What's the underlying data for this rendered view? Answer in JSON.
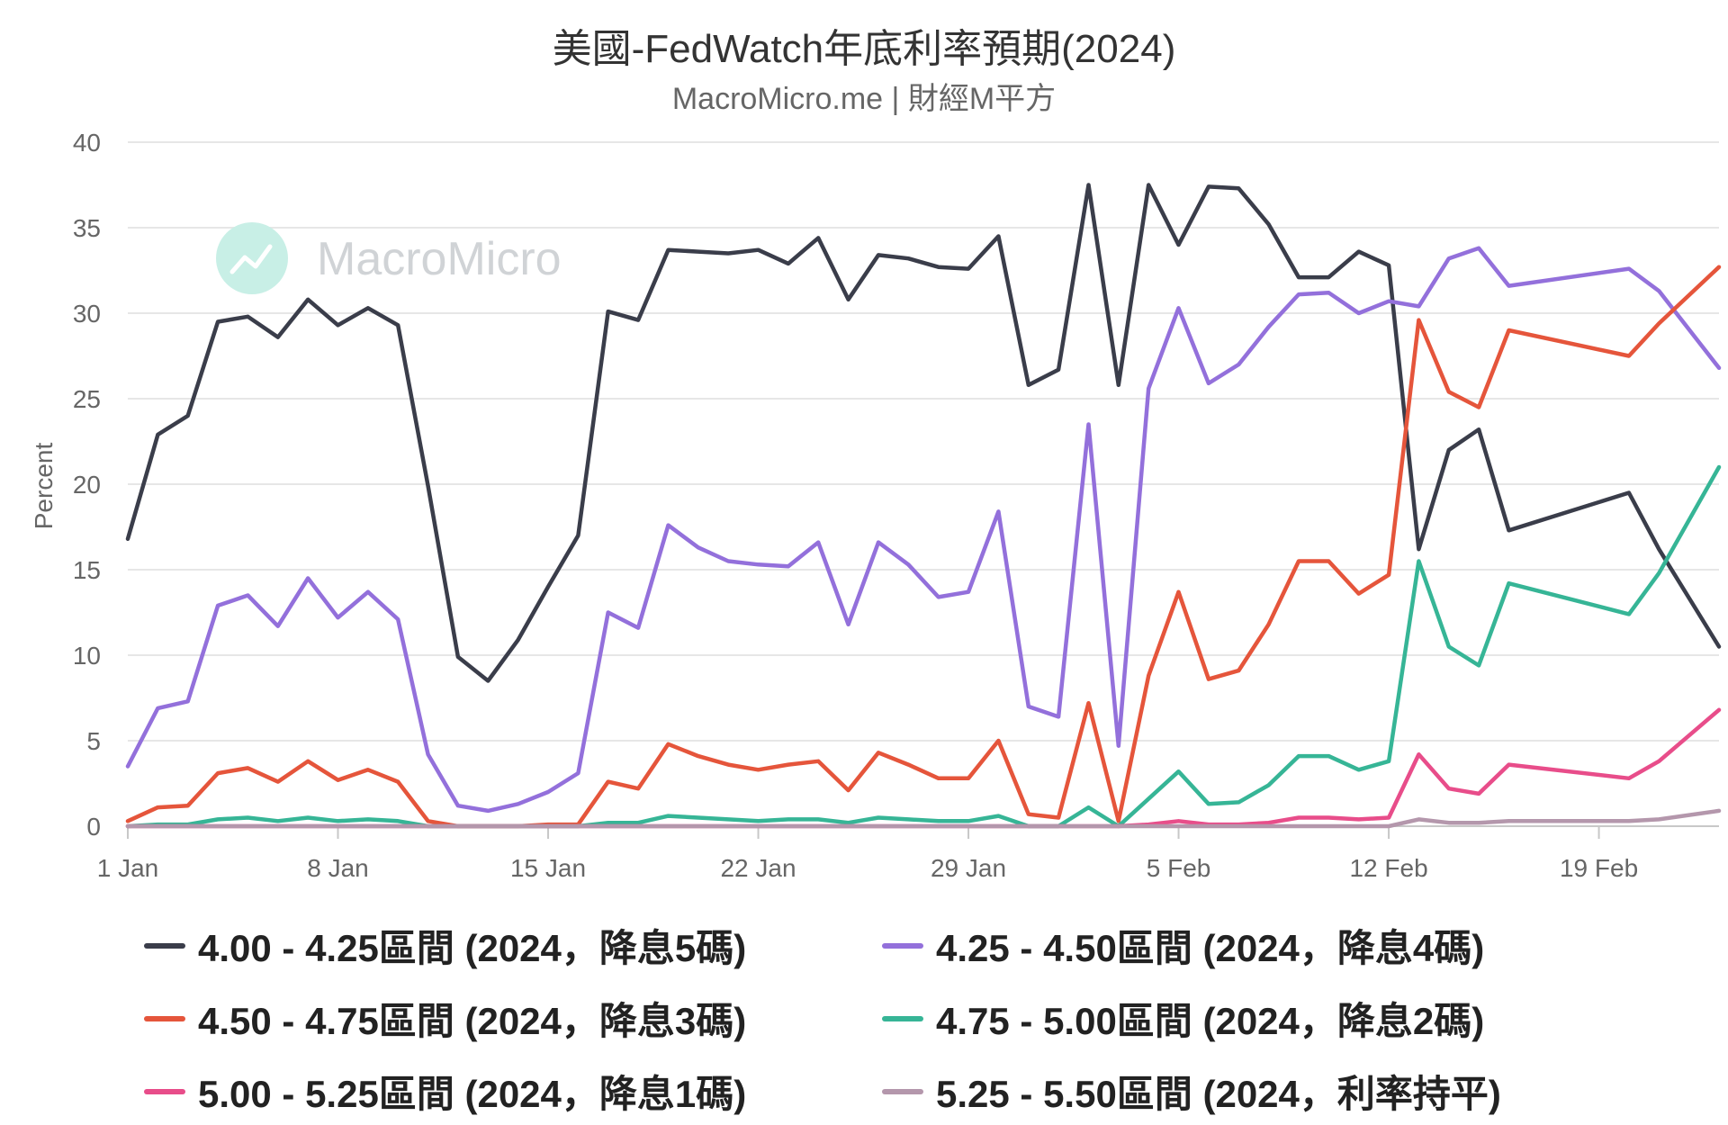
{
  "chart_data": {
    "type": "line",
    "title": "美國-FedWatch年底利率預期(2024)",
    "subtitle": "MacroMicro.me | 財經M平方",
    "watermark": "MacroMicro",
    "ylabel": "Percent",
    "xlabel": "",
    "ylim": [
      0,
      40
    ],
    "yticks": [
      "0",
      "5",
      "10",
      "15",
      "20",
      "25",
      "30",
      "35",
      "40"
    ],
    "x_start": "2024-01-01",
    "x_end": "2024-02-23",
    "xticks": [
      {
        "date": "2024-01-01",
        "label": "1 Jan"
      },
      {
        "date": "2024-01-08",
        "label": "8 Jan"
      },
      {
        "date": "2024-01-15",
        "label": "15 Jan"
      },
      {
        "date": "2024-01-22",
        "label": "22 Jan"
      },
      {
        "date": "2024-01-29",
        "label": "29 Jan"
      },
      {
        "date": "2024-02-05",
        "label": "5 Feb"
      },
      {
        "date": "2024-02-12",
        "label": "12 Feb"
      },
      {
        "date": "2024-02-19",
        "label": "19 Feb"
      }
    ],
    "grid": true,
    "legend_position": "bottom",
    "x": [
      "2024-01-01",
      "2024-01-02",
      "2024-01-03",
      "2024-01-04",
      "2024-01-05",
      "2024-01-06",
      "2024-01-07",
      "2024-01-08",
      "2024-01-09",
      "2024-01-10",
      "2024-01-11",
      "2024-01-12",
      "2024-01-13",
      "2024-01-14",
      "2024-01-15",
      "2024-01-16",
      "2024-01-17",
      "2024-01-18",
      "2024-01-19",
      "2024-01-20",
      "2024-01-21",
      "2024-01-22",
      "2024-01-23",
      "2024-01-24",
      "2024-01-25",
      "2024-01-26",
      "2024-01-27",
      "2024-01-28",
      "2024-01-29",
      "2024-01-30",
      "2024-01-31",
      "2024-02-01",
      "2024-02-02",
      "2024-02-03",
      "2024-02-04",
      "2024-02-05",
      "2024-02-06",
      "2024-02-07",
      "2024-02-08",
      "2024-02-09",
      "2024-02-10",
      "2024-02-11",
      "2024-02-12",
      "2024-02-13",
      "2024-02-14",
      "2024-02-15",
      "2024-02-16",
      "2024-02-20",
      "2024-02-21",
      "2024-02-23"
    ],
    "series": [
      {
        "name": "4.00 - 4.25區間 (2024，降息5碼)",
        "color": "#3a3d4a",
        "values": [
          16.8,
          22.9,
          24.0,
          29.5,
          29.8,
          28.6,
          30.8,
          29.3,
          30.3,
          29.3,
          19.9,
          9.9,
          8.5,
          10.9,
          14.0,
          17.0,
          30.1,
          29.6,
          33.7,
          33.6,
          33.5,
          33.7,
          32.9,
          34.4,
          30.8,
          33.4,
          33.2,
          32.7,
          32.6,
          34.5,
          25.8,
          26.7,
          37.5,
          25.8,
          37.5,
          34.0,
          37.4,
          37.3,
          35.2,
          32.1,
          32.1,
          33.6,
          32.8,
          16.2,
          22.0,
          23.2,
          17.3,
          19.5,
          16.2,
          10.5
        ]
      },
      {
        "name": "4.25 - 4.50區間 (2024，降息4碼)",
        "color": "#9370db",
        "values": [
          3.5,
          6.9,
          7.3,
          12.9,
          13.5,
          11.7,
          14.5,
          12.2,
          13.7,
          12.1,
          4.2,
          1.2,
          0.9,
          1.3,
          2.0,
          3.1,
          12.5,
          11.6,
          17.6,
          16.3,
          15.5,
          15.3,
          15.2,
          16.6,
          11.8,
          16.6,
          15.3,
          13.4,
          13.7,
          18.4,
          7.0,
          6.4,
          23.5,
          4.7,
          25.6,
          30.3,
          25.9,
          27.0,
          29.2,
          31.1,
          31.2,
          30.0,
          30.7,
          30.4,
          33.2,
          33.8,
          31.6,
          32.6,
          31.3,
          26.8
        ]
      },
      {
        "name": "4.50 - 4.75區間 (2024，降息3碼)",
        "color": "#e5553b",
        "values": [
          0.3,
          1.1,
          1.2,
          3.1,
          3.4,
          2.6,
          3.8,
          2.7,
          3.3,
          2.6,
          0.3,
          0.0,
          0.0,
          0.0,
          0.1,
          0.1,
          2.6,
          2.2,
          4.8,
          4.1,
          3.6,
          3.3,
          3.6,
          3.8,
          2.1,
          4.3,
          3.6,
          2.8,
          2.8,
          5.0,
          0.7,
          0.5,
          7.2,
          0.3,
          8.8,
          13.7,
          8.6,
          9.1,
          11.8,
          15.5,
          15.5,
          13.6,
          14.7,
          29.6,
          25.4,
          24.5,
          29.0,
          27.5,
          29.4,
          32.7
        ]
      },
      {
        "name": "4.75 - 5.00區間 (2024，降息2碼)",
        "color": "#36b596",
        "values": [
          0.0,
          0.1,
          0.1,
          0.4,
          0.5,
          0.3,
          0.5,
          0.3,
          0.4,
          0.3,
          0.0,
          0.0,
          0.0,
          0.0,
          0.0,
          0.0,
          0.2,
          0.2,
          0.6,
          0.5,
          0.4,
          0.3,
          0.4,
          0.4,
          0.2,
          0.5,
          0.4,
          0.3,
          0.3,
          0.6,
          0.0,
          0.0,
          1.1,
          0.0,
          1.6,
          3.2,
          1.3,
          1.4,
          2.4,
          4.1,
          4.1,
          3.3,
          3.8,
          15.5,
          10.5,
          9.4,
          14.2,
          12.4,
          14.8,
          21.0
        ]
      },
      {
        "name": "5.00 - 5.25區間 (2024，降息1碼)",
        "color": "#e84d8a",
        "values": [
          0.0,
          0.0,
          0.0,
          0.0,
          0.0,
          0.0,
          0.0,
          0.0,
          0.0,
          0.0,
          0.0,
          0.0,
          0.0,
          0.0,
          0.0,
          0.0,
          0.0,
          0.0,
          0.0,
          0.0,
          0.0,
          0.0,
          0.0,
          0.0,
          0.0,
          0.0,
          0.0,
          0.0,
          0.0,
          0.0,
          0.0,
          0.0,
          0.0,
          0.0,
          0.1,
          0.3,
          0.1,
          0.1,
          0.2,
          0.5,
          0.5,
          0.4,
          0.5,
          4.2,
          2.2,
          1.9,
          3.6,
          2.8,
          3.8,
          6.8
        ]
      },
      {
        "name": "5.25 - 5.50區間 (2024，利率持平)",
        "color": "#b497ac",
        "values": [
          0.0,
          0.0,
          0.0,
          0.0,
          0.0,
          0.0,
          0.0,
          0.0,
          0.0,
          0.0,
          0.0,
          0.0,
          0.0,
          0.0,
          0.0,
          0.0,
          0.0,
          0.0,
          0.0,
          0.0,
          0.0,
          0.0,
          0.0,
          0.0,
          0.0,
          0.0,
          0.0,
          0.0,
          0.0,
          0.0,
          0.0,
          0.0,
          0.0,
          0.0,
          0.0,
          0.0,
          0.0,
          0.0,
          0.0,
          0.0,
          0.0,
          0.0,
          0.0,
          0.4,
          0.2,
          0.2,
          0.3,
          0.3,
          0.4,
          0.9
        ]
      }
    ]
  }
}
